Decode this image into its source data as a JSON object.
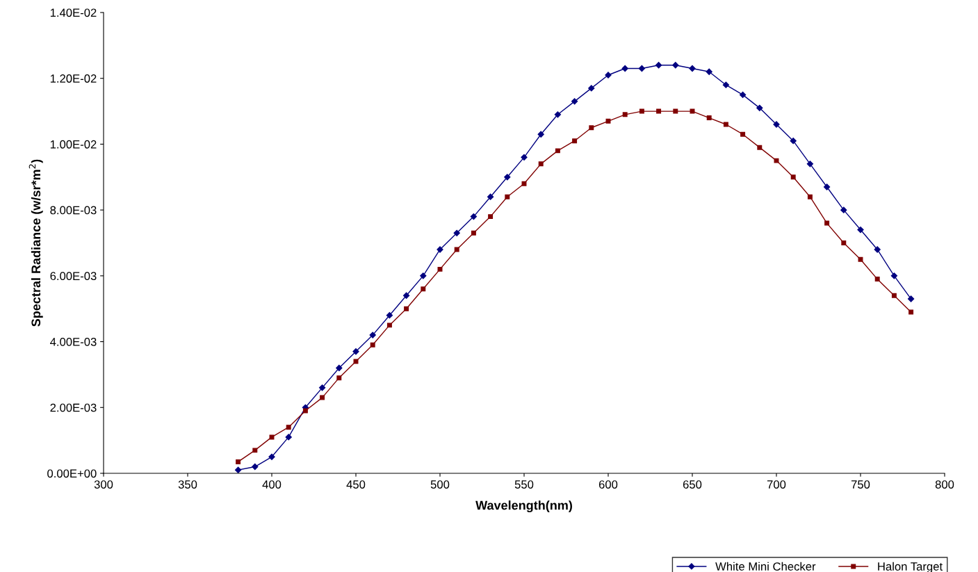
{
  "chart_data": {
    "type": "line",
    "xlabel": "Wavelength(nm)",
    "ylabel": "Spectral Radiance (w/sr*m$^{2}$)",
    "x": [
      380,
      390,
      400,
      410,
      420,
      430,
      440,
      450,
      460,
      470,
      480,
      490,
      500,
      510,
      520,
      530,
      540,
      550,
      560,
      570,
      580,
      590,
      600,
      610,
      620,
      630,
      640,
      650,
      660,
      670,
      680,
      690,
      700,
      710,
      720,
      730,
      740,
      750,
      760,
      770,
      780
    ],
    "series": [
      {
        "name": "White Mini Checker",
        "color": "#000080",
        "marker": "diamond",
        "values": [
          0.0001,
          0.0002,
          0.0005,
          0.0011,
          0.002,
          0.0026,
          0.0032,
          0.0037,
          0.0042,
          0.0048,
          0.0054,
          0.006,
          0.0068,
          0.0073,
          0.0078,
          0.0084,
          0.009,
          0.0096,
          0.0103,
          0.0109,
          0.0113,
          0.0117,
          0.0121,
          0.0123,
          0.0123,
          0.0124,
          0.0124,
          0.0123,
          0.0122,
          0.0118,
          0.0115,
          0.0111,
          0.0106,
          0.0101,
          0.0094,
          0.0087,
          0.008,
          0.0074,
          0.0068,
          0.006,
          0.0053
        ]
      },
      {
        "name": "Halon Target",
        "color": "#800000",
        "marker": "square",
        "values": [
          0.00035,
          0.0007,
          0.0011,
          0.0014,
          0.0019,
          0.0023,
          0.0029,
          0.0034,
          0.0039,
          0.0045,
          0.005,
          0.0056,
          0.0062,
          0.0068,
          0.0073,
          0.0078,
          0.0084,
          0.0088,
          0.0094,
          0.0098,
          0.0101,
          0.0105,
          0.0107,
          0.0109,
          0.011,
          0.011,
          0.011,
          0.011,
          0.0108,
          0.0106,
          0.0103,
          0.0099,
          0.0095,
          0.009,
          0.0084,
          0.0076,
          0.007,
          0.0065,
          0.0059,
          0.0054,
          0.0049
        ]
      }
    ],
    "xlim": [
      300,
      800
    ],
    "xticks": [
      300,
      350,
      400,
      450,
      500,
      550,
      600,
      650,
      700,
      750,
      800
    ],
    "ylim": [
      0,
      0.014
    ],
    "yticks": [
      {
        "value": 0,
        "label": "0.00E+00"
      },
      {
        "value": 0.002,
        "label": "2.00E-03"
      },
      {
        "value": 0.004,
        "label": "4.00E-03"
      },
      {
        "value": 0.006,
        "label": "6.00E-03"
      },
      {
        "value": 0.008,
        "label": "8.00E-03"
      },
      {
        "value": 0.01,
        "label": "1.00E-02"
      },
      {
        "value": 0.012,
        "label": "1.20E-02"
      },
      {
        "value": 0.014,
        "label": "1.40E-02"
      }
    ],
    "grid": false,
    "legend": "bottom right",
    "line_style": "solid"
  }
}
